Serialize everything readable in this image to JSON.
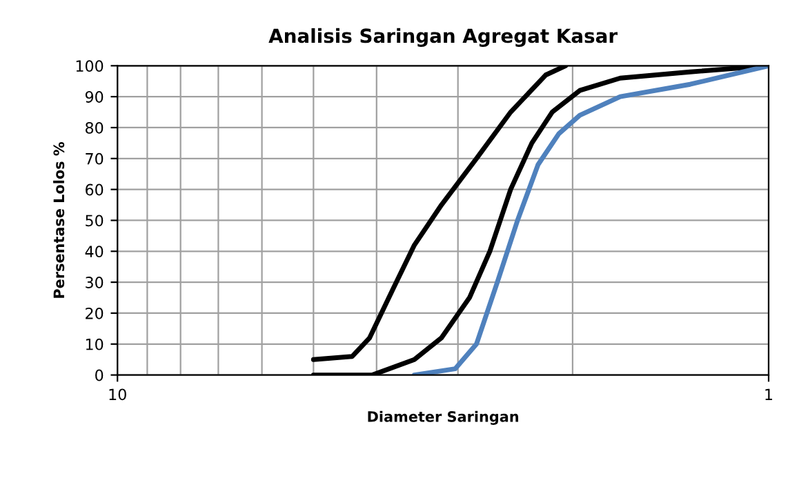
{
  "chart_data": {
    "type": "line",
    "title": "Analisis Saringan Agregat Kasar",
    "xlabel": "Diameter Saringan",
    "ylabel": "Persentase Lolos %",
    "log": "x",
    "xlim": [
      10,
      1
    ],
    "xticks": [
      10,
      1
    ],
    "ylim": [
      0,
      100
    ],
    "yticks": [
      0,
      10,
      20,
      30,
      40,
      50,
      60,
      70,
      80,
      90,
      100
    ],
    "grid": true,
    "legend": false,
    "marker": "none",
    "line_style": "solid",
    "series": [
      {
        "color": "#000000",
        "x": [
          5.0,
          4.36,
          4.1,
          3.77,
          3.5,
          3.18,
          2.81,
          2.49,
          2.2,
          2.05
        ],
        "values": [
          5,
          6,
          12,
          28,
          42,
          55,
          70,
          85,
          97,
          100
        ]
      },
      {
        "color": "#000000",
        "x": [
          5.0,
          4.06,
          3.5,
          3.18,
          2.88,
          2.68,
          2.49,
          2.31,
          2.15,
          1.95,
          1.69,
          1.32,
          1.0
        ],
        "values": [
          0,
          0,
          5,
          12,
          25,
          40,
          60,
          75,
          85,
          92,
          96,
          98,
          100
        ]
      },
      {
        "color": "#4f81bd",
        "x": [
          3.5,
          3.03,
          2.81,
          2.61,
          2.43,
          2.26,
          2.1,
          1.95,
          1.69,
          1.32,
          1.0
        ],
        "values": [
          0,
          2,
          10,
          30,
          50,
          68,
          78,
          84,
          90,
          94,
          100
        ]
      }
    ]
  }
}
